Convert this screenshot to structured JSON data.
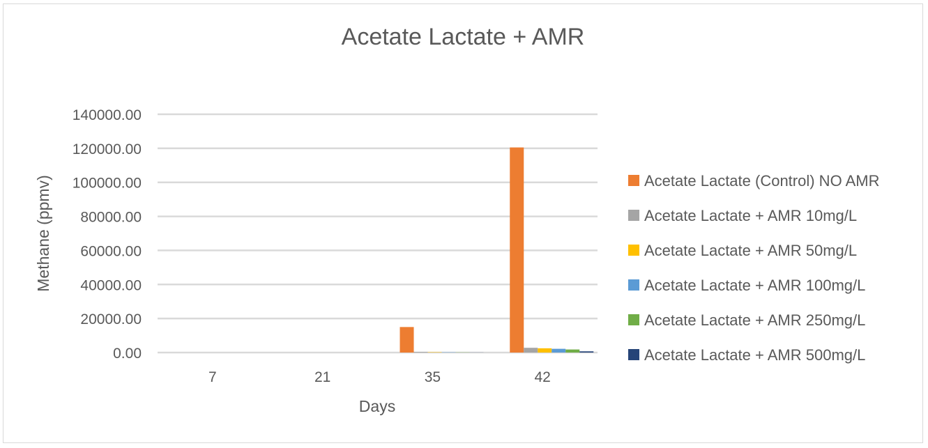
{
  "chart_data": {
    "type": "bar",
    "title": "Acetate Lactate + AMR",
    "xlabel": "Days",
    "ylabel": "Methane (ppmv)",
    "categories": [
      "7",
      "21",
      "35",
      "42"
    ],
    "ylim": [
      0,
      140000
    ],
    "yticks": [
      0,
      20000,
      40000,
      60000,
      80000,
      100000,
      120000,
      140000
    ],
    "ytick_labels": [
      "0.00",
      "20000.00",
      "40000.00",
      "60000.00",
      "80000.00",
      "100000.00",
      "120000.00",
      "140000.00"
    ],
    "grid": true,
    "legend_position": "right",
    "series": [
      {
        "name": "Acetate Lactate (Control) NO AMR",
        "color": "#ED7D31",
        "values": [
          0,
          0,
          15000,
          120500
        ]
      },
      {
        "name": "Acetate Lactate + AMR 10mg/L",
        "color": "#A5A5A5",
        "values": [
          0,
          0,
          400,
          2800
        ]
      },
      {
        "name": "Acetate Lactate + AMR 50mg/L",
        "color": "#FFC000",
        "values": [
          0,
          0,
          200,
          2500
        ]
      },
      {
        "name": "Acetate Lactate + AMR 100mg/L",
        "color": "#5B9BD5",
        "values": [
          0,
          0,
          150,
          2200
        ]
      },
      {
        "name": "Acetate Lactate + AMR 250mg/L",
        "color": "#70AD47",
        "values": [
          0,
          0,
          100,
          1800
        ]
      },
      {
        "name": "Acetate Lactate + AMR 500mg/L",
        "color": "#264478",
        "values": [
          0,
          0,
          50,
          700
        ]
      }
    ]
  }
}
